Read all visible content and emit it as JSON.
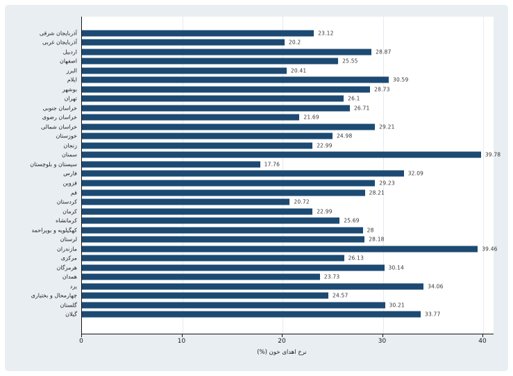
{
  "chart_data": {
    "type": "bar",
    "orientation": "horizontal",
    "title": "",
    "xlabel": "نرخ اهدای خون (%)",
    "ylabel": "",
    "xlim": [
      0,
      40
    ],
    "x_ticks": [
      "0",
      "10",
      "20",
      "30",
      "40"
    ],
    "grid": true,
    "bar_color": "#1c4a72",
    "background_color": "#e8eef2",
    "plot_background": "#ffffff",
    "categories": [
      "آذربایجان شرقی",
      "آذربایجان غربی",
      "اردبیل",
      "اصفهان",
      "البرز",
      "ایلام",
      "بوشهر",
      "تهران",
      "خراسان جنوبی",
      "خراسان رضوی",
      "خراسان شمالی",
      "خوزستان",
      "زنجان",
      "سمنان",
      "سیستان و بلوچستان",
      "فارس",
      "قزوین",
      "قم",
      "کردستان",
      "کرمان",
      "کرمانشاه",
      "کهگیلویه و بویراحمد",
      "لرستان",
      "مازندران",
      "مرکزی",
      "هرمزگان",
      "همدان",
      "یزد",
      "چهارمحال و بختیاری",
      "گلستان",
      "گیلان"
    ],
    "values": [
      23.12,
      20.2,
      28.87,
      25.55,
      20.41,
      30.59,
      28.73,
      26.1,
      26.71,
      21.69,
      29.21,
      24.98,
      22.99,
      39.78,
      17.76,
      32.09,
      29.23,
      28.21,
      20.72,
      22.99,
      25.69,
      28,
      28.18,
      39.46,
      26.13,
      30.14,
      23.73,
      34.06,
      24.57,
      30.21,
      33.77
    ],
    "value_labels": [
      "23.12",
      "20.2",
      "28.87",
      "25.55",
      "20.41",
      "30.59",
      "28.73",
      "26.1",
      "26.71",
      "21.69",
      "29.21",
      "24.98",
      "22.99",
      "39.78",
      "17.76",
      "32.09",
      "29.23",
      "28.21",
      "20.72",
      "22.99",
      "25.69",
      "28",
      "28.18",
      "39.46",
      "26.13",
      "30.14",
      "23.73",
      "34.06",
      "24.57",
      "30.21",
      "33.77"
    ]
  }
}
